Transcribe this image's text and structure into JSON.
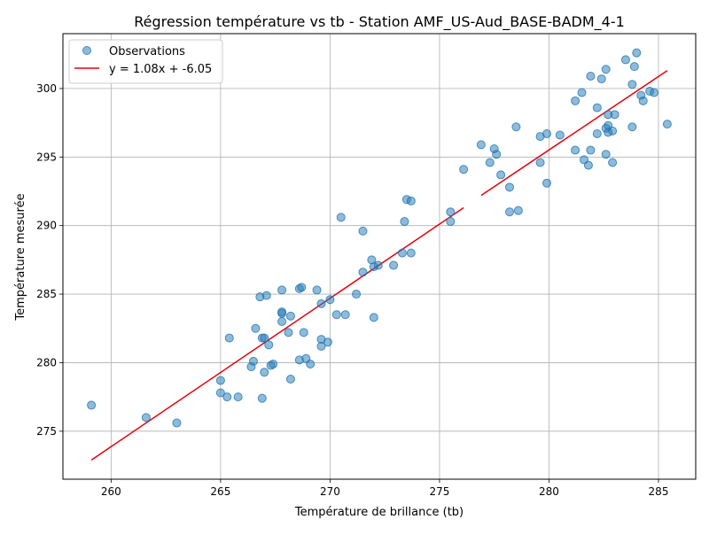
{
  "chart_data": {
    "type": "scatter",
    "title": "Régression température vs tb - Station AMF_US-Aud_BASE-BADM_4-1",
    "xlabel": "Température de brillance (tb)",
    "ylabel": "Température mesurée",
    "xlim": [
      257.8,
      286.7
    ],
    "ylim": [
      271.5,
      304.0
    ],
    "x_ticks": [
      260,
      265,
      270,
      275,
      280,
      285
    ],
    "y_ticks": [
      275,
      280,
      285,
      290,
      295,
      300
    ],
    "grid": true,
    "legend_position": "top-left",
    "legend": [
      {
        "label": "Observations",
        "kind": "marker"
      },
      {
        "label": "y = 1.08x + -6.05",
        "kind": "line"
      }
    ],
    "colors": {
      "points": "#1f77b4",
      "line": "#e8000b"
    },
    "series": [
      {
        "name": "Observations",
        "points": [
          [
            259.1,
            276.9
          ],
          [
            261.6,
            276.0
          ],
          [
            263.0,
            275.6
          ],
          [
            265.0,
            278.7
          ],
          [
            265.0,
            277.8
          ],
          [
            265.3,
            277.5
          ],
          [
            265.4,
            281.8
          ],
          [
            265.8,
            277.5
          ],
          [
            266.4,
            279.7
          ],
          [
            266.5,
            280.1
          ],
          [
            266.6,
            282.5
          ],
          [
            266.8,
            284.8
          ],
          [
            266.9,
            281.8
          ],
          [
            266.9,
            277.4
          ],
          [
            267.0,
            281.8
          ],
          [
            267.1,
            284.9
          ],
          [
            267.0,
            279.3
          ],
          [
            267.2,
            281.3
          ],
          [
            267.3,
            279.8
          ],
          [
            267.4,
            279.9
          ],
          [
            267.8,
            283.7
          ],
          [
            267.8,
            283.6
          ],
          [
            267.8,
            285.3
          ],
          [
            267.8,
            283.0
          ],
          [
            268.1,
            282.2
          ],
          [
            268.2,
            283.4
          ],
          [
            268.2,
            278.8
          ],
          [
            268.6,
            285.4
          ],
          [
            268.6,
            280.2
          ],
          [
            268.7,
            285.5
          ],
          [
            268.8,
            282.2
          ],
          [
            268.9,
            280.3
          ],
          [
            269.1,
            279.9
          ],
          [
            269.4,
            285.3
          ],
          [
            269.6,
            284.3
          ],
          [
            269.6,
            281.7
          ],
          [
            269.6,
            281.2
          ],
          [
            269.9,
            281.5
          ],
          [
            270.0,
            284.6
          ],
          [
            270.3,
            283.5
          ],
          [
            270.5,
            290.6
          ],
          [
            270.7,
            283.5
          ],
          [
            271.2,
            285.0
          ],
          [
            271.5,
            289.6
          ],
          [
            271.5,
            286.6
          ],
          [
            271.9,
            287.5
          ],
          [
            272.0,
            287.0
          ],
          [
            272.0,
            283.3
          ],
          [
            272.2,
            287.1
          ],
          [
            272.9,
            287.1
          ],
          [
            273.3,
            288.0
          ],
          [
            273.4,
            290.3
          ],
          [
            273.5,
            291.9
          ],
          [
            273.7,
            291.8
          ],
          [
            273.7,
            288.0
          ],
          [
            275.5,
            291.0
          ],
          [
            275.5,
            290.3
          ],
          [
            276.1,
            294.1
          ],
          [
            276.9,
            295.9
          ],
          [
            277.3,
            294.6
          ],
          [
            277.5,
            295.6
          ],
          [
            277.6,
            295.2
          ],
          [
            277.8,
            293.7
          ],
          [
            278.2,
            292.8
          ],
          [
            278.2,
            291.0
          ],
          [
            278.5,
            297.2
          ],
          [
            278.6,
            291.1
          ],
          [
            279.6,
            296.5
          ],
          [
            279.6,
            294.6
          ],
          [
            279.9,
            296.7
          ],
          [
            279.9,
            293.1
          ],
          [
            280.5,
            296.6
          ],
          [
            281.2,
            299.1
          ],
          [
            281.2,
            295.5
          ],
          [
            281.5,
            299.7
          ],
          [
            281.6,
            294.8
          ],
          [
            281.8,
            294.4
          ],
          [
            281.9,
            295.5
          ],
          [
            281.9,
            300.9
          ],
          [
            282.2,
            298.6
          ],
          [
            282.2,
            296.7
          ],
          [
            282.4,
            300.7
          ],
          [
            282.6,
            301.4
          ],
          [
            282.6,
            297.1
          ],
          [
            282.6,
            295.2
          ],
          [
            282.7,
            297.3
          ],
          [
            282.7,
            298.1
          ],
          [
            282.7,
            296.8
          ],
          [
            282.9,
            296.9
          ],
          [
            282.9,
            294.6
          ],
          [
            283.0,
            298.1
          ],
          [
            283.5,
            302.1
          ],
          [
            283.8,
            300.3
          ],
          [
            283.8,
            297.2
          ],
          [
            283.9,
            301.6
          ],
          [
            284.0,
            302.6
          ],
          [
            284.2,
            299.5
          ],
          [
            284.3,
            299.1
          ],
          [
            284.6,
            299.8
          ],
          [
            284.8,
            299.7
          ],
          [
            285.4,
            297.4
          ]
        ]
      }
    ],
    "regression": {
      "label": "y = 1.08x + -6.05",
      "segments": [
        [
          [
            259.1,
            272.9
          ],
          [
            276.1,
            291.3
          ]
        ],
        [
          [
            276.9,
            292.2
          ],
          [
            285.4,
            301.3
          ]
        ]
      ]
    }
  }
}
